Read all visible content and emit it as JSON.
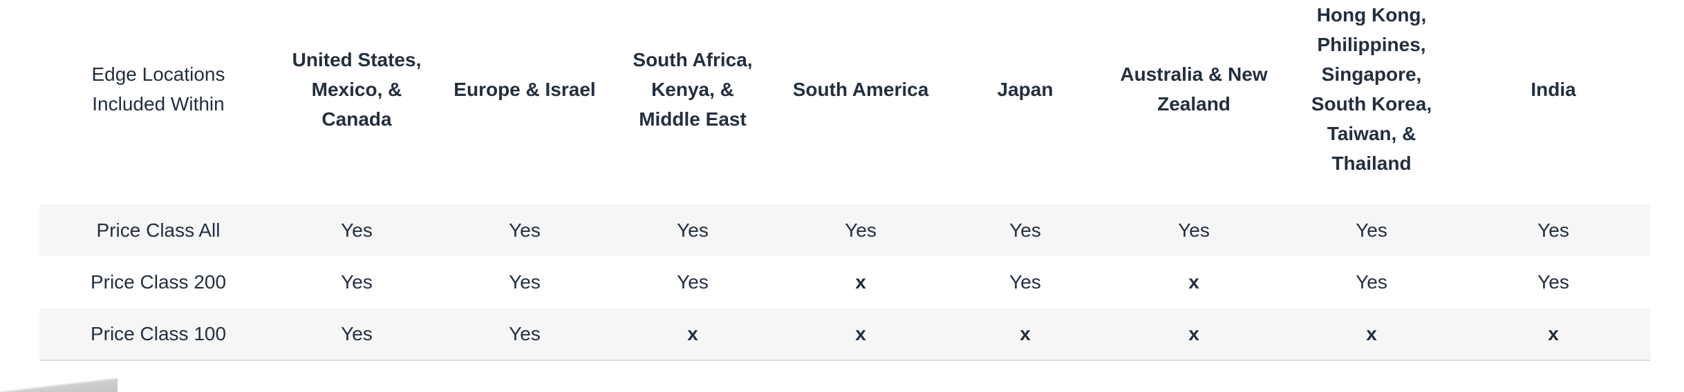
{
  "table": {
    "headers": [
      "Edge Locations Included Within",
      "United States, Mexico, & Canada",
      "Europe & Israel",
      "South Africa, Kenya, & Middle East",
      "South America",
      "Japan",
      "Australia & New Zealand",
      "Hong Kong, Philippines, Singapore, South Korea, Taiwan, & Thailand",
      "India"
    ],
    "rows": [
      [
        "Price Class All",
        "Yes",
        "Yes",
        "Yes",
        "Yes",
        "Yes",
        "Yes",
        "Yes",
        "Yes"
      ],
      [
        "Price Class 200",
        "Yes",
        "Yes",
        "Yes",
        "x",
        "Yes",
        "x",
        "Yes",
        "Yes"
      ],
      [
        "Price Class 100",
        "Yes",
        "Yes",
        "x",
        "x",
        "x",
        "x",
        "x",
        "x"
      ]
    ]
  },
  "colors": {
    "text": "#232f3e",
    "row_shade": "#f6f6f6",
    "rule": "#d9d9d9"
  }
}
